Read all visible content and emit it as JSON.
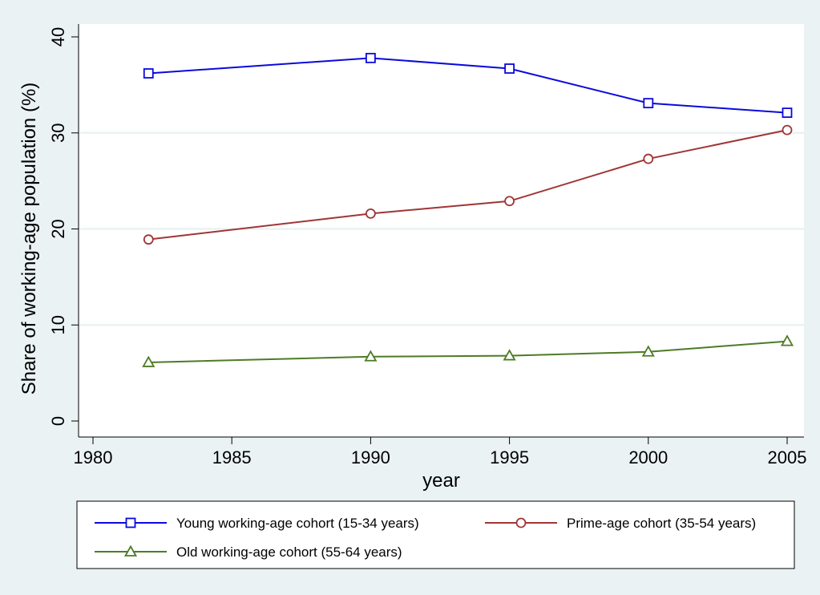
{
  "chart_data": {
    "type": "line",
    "title": "",
    "xlabel": "year",
    "ylabel": "Share of working-age population (%)",
    "xlim": [
      1980,
      2005
    ],
    "ylim": [
      0,
      40
    ],
    "xticks": [
      1980,
      1985,
      1990,
      1995,
      2000,
      2005
    ],
    "yticks": [
      0,
      10,
      20,
      30,
      40
    ],
    "grid": "horizontal",
    "legend_position": "bottom",
    "x": [
      1982,
      1990,
      1995,
      2000,
      2005
    ],
    "series": [
      {
        "name": "Young working-age cohort (15-34 years)",
        "marker": "square",
        "color": "#0a0adc",
        "values": [
          36.2,
          37.8,
          36.7,
          33.1,
          32.1
        ]
      },
      {
        "name": "Prime-age cohort (35-54 years)",
        "marker": "circle",
        "color": "#a03535",
        "values": [
          18.9,
          21.6,
          22.9,
          27.3,
          30.3
        ]
      },
      {
        "name": "Old working-age cohort (55-64 years)",
        "marker": "triangle",
        "color": "#4e7b26",
        "values": [
          6.1,
          6.7,
          6.8,
          7.2,
          8.3
        ]
      }
    ]
  }
}
